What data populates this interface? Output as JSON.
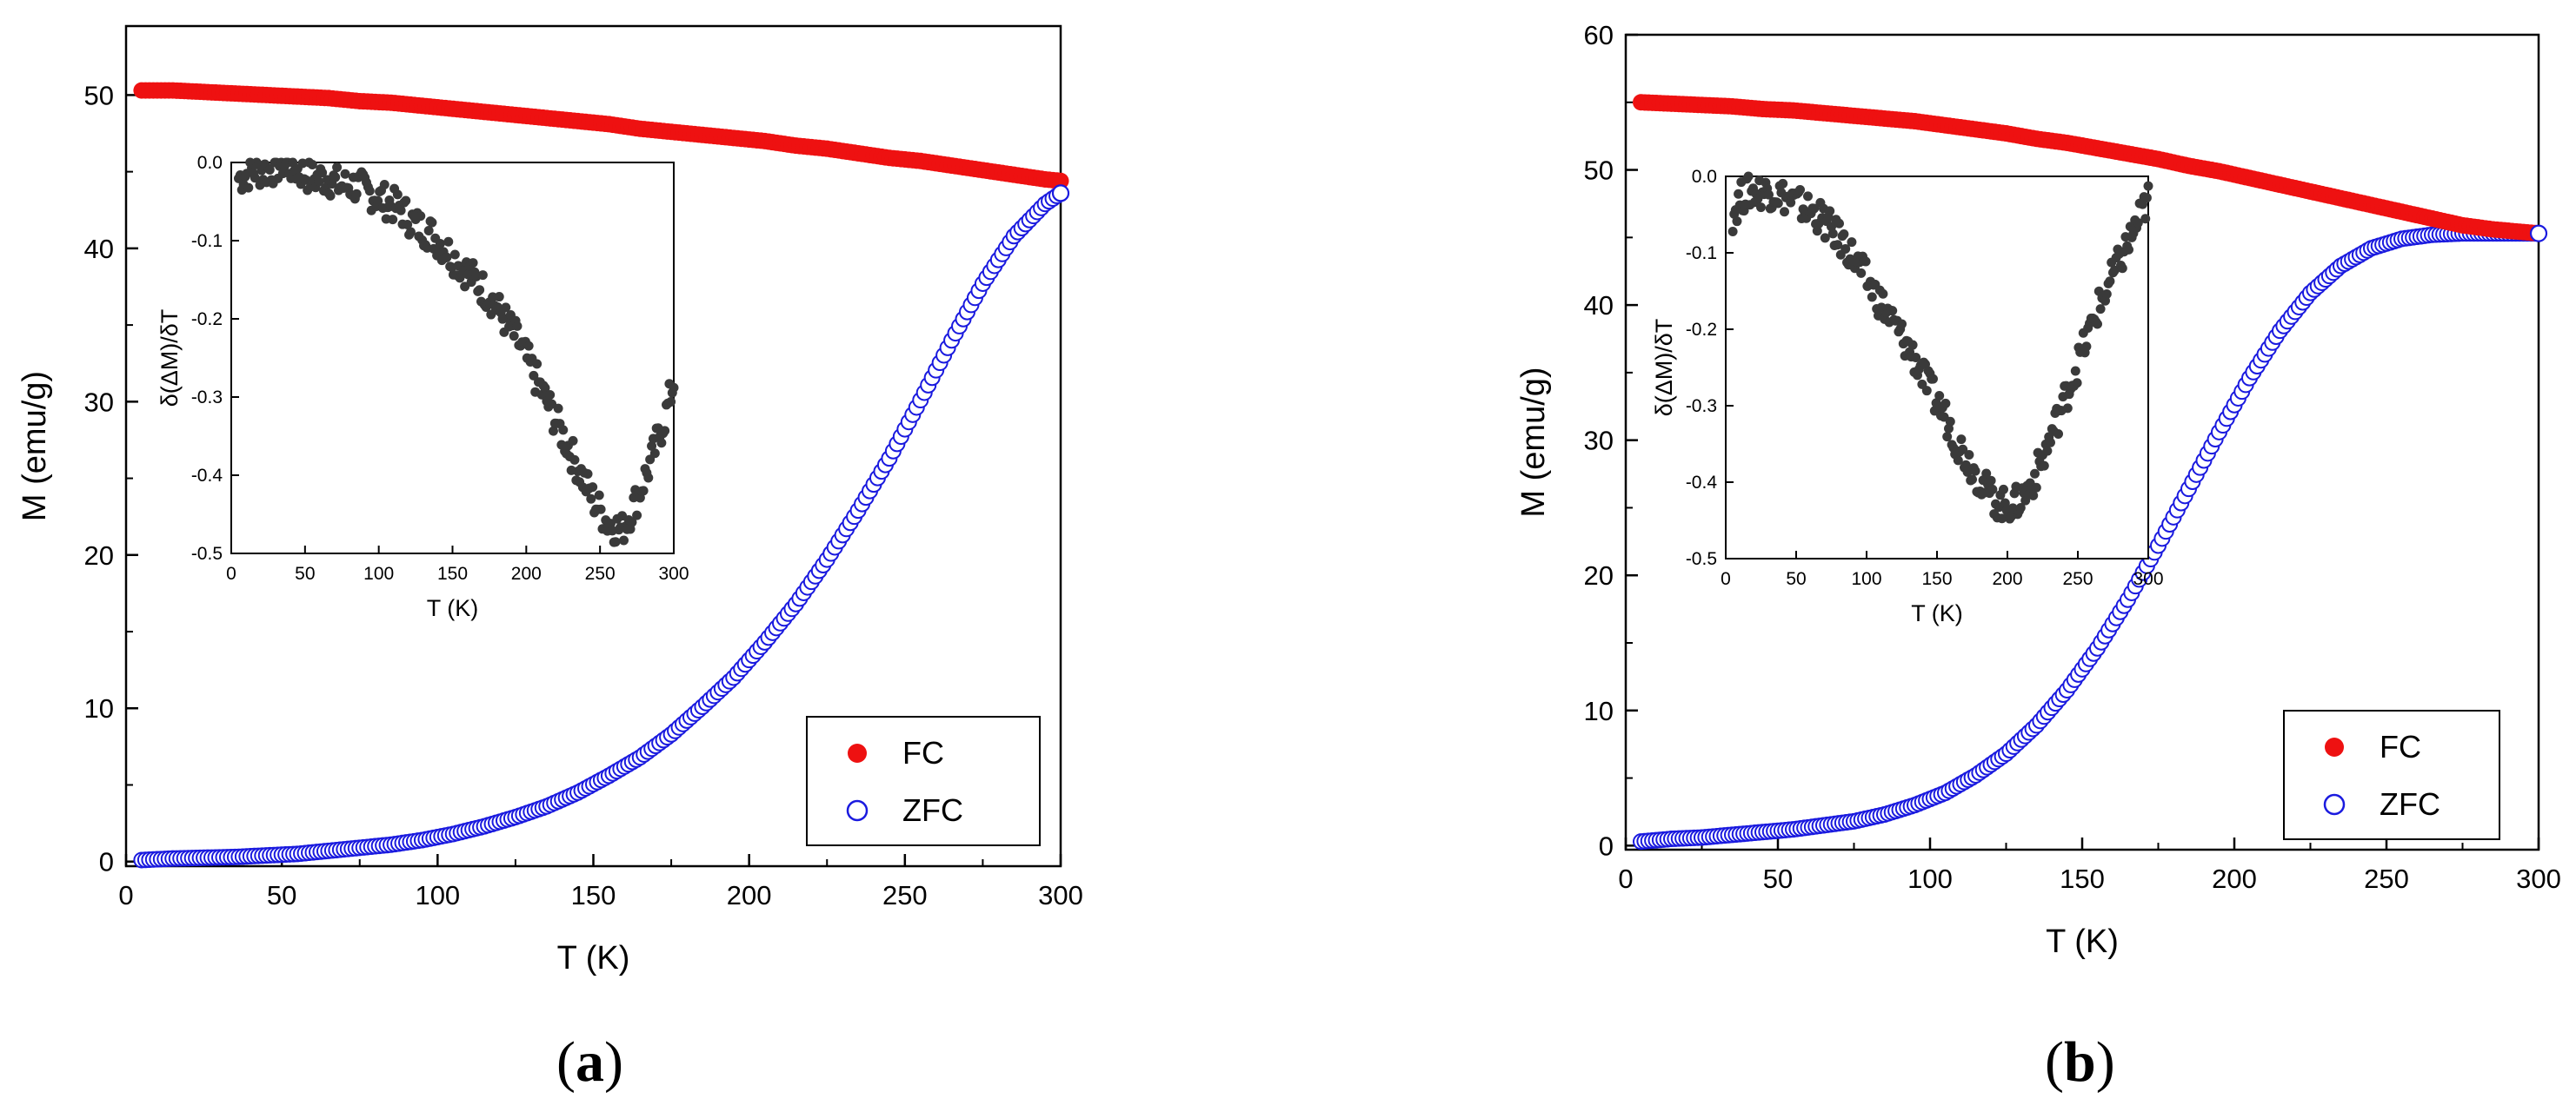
{
  "figure": {
    "panel_a_caption": {
      "open": "(",
      "letter": "a",
      "close": ")"
    },
    "panel_b_caption": {
      "open": "(",
      "letter": "b",
      "close": ")"
    }
  },
  "colors": {
    "fc": "#ee1111",
    "zfc": "#1a1adf",
    "inset": "#3a3a3a",
    "axis": "#000000"
  },
  "chart_data": [
    {
      "id": "a",
      "type": "scatter",
      "title": "",
      "xlabel": "T (K)",
      "ylabel": "M (emu/g)",
      "xlim": [
        0,
        300
      ],
      "ylim": [
        -0.3,
        54.5
      ],
      "xticks": [
        0,
        50,
        100,
        150,
        200,
        250,
        300
      ],
      "yticks": [
        0,
        10,
        20,
        30,
        40,
        50
      ],
      "legend": {
        "position": "bottom-right",
        "entries": [
          "FC",
          "ZFC"
        ]
      },
      "series": [
        {
          "name": "FC",
          "marker": "filled-circle",
          "points": [
            [
              5,
              50.3
            ],
            [
              15,
              50.3
            ],
            [
              25,
              50.2
            ],
            [
              35,
              50.1
            ],
            [
              45,
              50.0
            ],
            [
              55,
              49.9
            ],
            [
              65,
              49.8
            ],
            [
              75,
              49.6
            ],
            [
              85,
              49.5
            ],
            [
              95,
              49.3
            ],
            [
              105,
              49.1
            ],
            [
              115,
              48.9
            ],
            [
              125,
              48.7
            ],
            [
              135,
              48.5
            ],
            [
              145,
              48.3
            ],
            [
              155,
              48.1
            ],
            [
              165,
              47.8
            ],
            [
              175,
              47.6
            ],
            [
              185,
              47.4
            ],
            [
              195,
              47.2
            ],
            [
              205,
              47.0
            ],
            [
              215,
              46.7
            ],
            [
              225,
              46.5
            ],
            [
              235,
              46.2
            ],
            [
              245,
              45.9
            ],
            [
              255,
              45.7
            ],
            [
              265,
              45.4
            ],
            [
              275,
              45.1
            ],
            [
              285,
              44.8
            ],
            [
              295,
              44.5
            ],
            [
              300,
              44.4
            ]
          ]
        },
        {
          "name": "ZFC",
          "marker": "open-circle",
          "points": [
            [
              5,
              0.1
            ],
            [
              15,
              0.2
            ],
            [
              25,
              0.25
            ],
            [
              35,
              0.3
            ],
            [
              45,
              0.4
            ],
            [
              55,
              0.5
            ],
            [
              65,
              0.7
            ],
            [
              75,
              0.9
            ],
            [
              85,
              1.1
            ],
            [
              95,
              1.4
            ],
            [
              105,
              1.8
            ],
            [
              115,
              2.3
            ],
            [
              125,
              2.9
            ],
            [
              135,
              3.6
            ],
            [
              145,
              4.5
            ],
            [
              155,
              5.6
            ],
            [
              165,
              6.8
            ],
            [
              175,
              8.3
            ],
            [
              185,
              10.1
            ],
            [
              195,
              12.0
            ],
            [
              205,
              14.3
            ],
            [
              215,
              16.8
            ],
            [
              225,
              19.7
            ],
            [
              235,
              22.9
            ],
            [
              245,
              26.3
            ],
            [
              255,
              30.1
            ],
            [
              265,
              34.0
            ],
            [
              275,
              37.7
            ],
            [
              285,
              40.8
            ],
            [
              295,
              42.9
            ],
            [
              300,
              43.6
            ]
          ]
        }
      ],
      "inset": {
        "type": "scatter",
        "xlabel": "T (K)",
        "ylabel": "δ(ΔM)/δT",
        "xlim": [
          0,
          300
        ],
        "ylim": [
          -0.5,
          0.0
        ],
        "xticks": [
          0,
          50,
          100,
          150,
          200,
          250,
          300
        ],
        "yticks": [
          0.0,
          -0.1,
          -0.2,
          -0.3,
          -0.4,
          -0.5
        ],
        "ytick_labels": [
          "0.0",
          "-0.1",
          "-0.2",
          "-0.3",
          "-0.4",
          "-0.5"
        ],
        "points": [
          [
            5,
            -0.02
          ],
          [
            15,
            -0.01
          ],
          [
            25,
            -0.01
          ],
          [
            35,
            0.0
          ],
          [
            45,
            -0.01
          ],
          [
            55,
            -0.02
          ],
          [
            65,
            -0.02
          ],
          [
            75,
            -0.03
          ],
          [
            85,
            -0.03
          ],
          [
            95,
            -0.04
          ],
          [
            105,
            -0.05
          ],
          [
            115,
            -0.06
          ],
          [
            125,
            -0.08
          ],
          [
            135,
            -0.09
          ],
          [
            145,
            -0.11
          ],
          [
            155,
            -0.13
          ],
          [
            165,
            -0.15
          ],
          [
            175,
            -0.17
          ],
          [
            185,
            -0.2
          ],
          [
            195,
            -0.23
          ],
          [
            205,
            -0.27
          ],
          [
            215,
            -0.31
          ],
          [
            225,
            -0.35
          ],
          [
            235,
            -0.39
          ],
          [
            245,
            -0.43
          ],
          [
            255,
            -0.46
          ],
          [
            265,
            -0.47
          ],
          [
            275,
            -0.43
          ],
          [
            285,
            -0.38
          ],
          [
            295,
            -0.32
          ],
          [
            300,
            -0.28
          ]
        ]
      }
    },
    {
      "id": "b",
      "type": "scatter",
      "title": "",
      "xlabel": "T (K)",
      "ylabel": "M (emu/g)",
      "xlim": [
        0,
        300
      ],
      "ylim": [
        -0.3,
        60
      ],
      "xticks": [
        0,
        50,
        100,
        150,
        200,
        250,
        300
      ],
      "yticks": [
        0,
        10,
        20,
        30,
        40,
        50,
        60
      ],
      "legend": {
        "position": "bottom-right",
        "entries": [
          "FC",
          "ZFC"
        ]
      },
      "series": [
        {
          "name": "FC",
          "marker": "filled-circle",
          "points": [
            [
              5,
              55.0
            ],
            [
              15,
              54.9
            ],
            [
              25,
              54.8
            ],
            [
              35,
              54.7
            ],
            [
              45,
              54.5
            ],
            [
              55,
              54.4
            ],
            [
              65,
              54.2
            ],
            [
              75,
              54.0
            ],
            [
              85,
              53.8
            ],
            [
              95,
              53.6
            ],
            [
              105,
              53.3
            ],
            [
              115,
              53.0
            ],
            [
              125,
              52.7
            ],
            [
              135,
              52.3
            ],
            [
              145,
              52.0
            ],
            [
              155,
              51.6
            ],
            [
              165,
              51.2
            ],
            [
              175,
              50.8
            ],
            [
              185,
              50.3
            ],
            [
              195,
              49.9
            ],
            [
              205,
              49.4
            ],
            [
              215,
              48.9
            ],
            [
              225,
              48.4
            ],
            [
              235,
              47.9
            ],
            [
              245,
              47.4
            ],
            [
              255,
              46.9
            ],
            [
              265,
              46.4
            ],
            [
              275,
              45.9
            ],
            [
              285,
              45.6
            ],
            [
              295,
              45.4
            ],
            [
              300,
              45.3
            ]
          ]
        },
        {
          "name": "ZFC",
          "marker": "open-circle",
          "points": [
            [
              5,
              0.3
            ],
            [
              15,
              0.5
            ],
            [
              25,
              0.6
            ],
            [
              35,
              0.8
            ],
            [
              45,
              1.0
            ],
            [
              55,
              1.2
            ],
            [
              65,
              1.5
            ],
            [
              75,
              1.8
            ],
            [
              85,
              2.3
            ],
            [
              95,
              3.0
            ],
            [
              105,
              3.9
            ],
            [
              115,
              5.2
            ],
            [
              125,
              6.8
            ],
            [
              135,
              8.9
            ],
            [
              145,
              11.5
            ],
            [
              155,
              14.6
            ],
            [
              165,
              18.2
            ],
            [
              175,
              22.2
            ],
            [
              185,
              26.4
            ],
            [
              195,
              30.6
            ],
            [
              205,
              34.6
            ],
            [
              215,
              38.1
            ],
            [
              225,
              40.9
            ],
            [
              235,
              42.9
            ],
            [
              245,
              44.2
            ],
            [
              255,
              44.9
            ],
            [
              265,
              45.2
            ],
            [
              275,
              45.3
            ],
            [
              285,
              45.3
            ],
            [
              295,
              45.3
            ],
            [
              300,
              45.3
            ]
          ]
        }
      ],
      "inset": {
        "type": "scatter",
        "xlabel": "T (K)",
        "ylabel": "δ(ΔM)/δT",
        "xlim": [
          0,
          300
        ],
        "ylim": [
          -0.5,
          0.0
        ],
        "xticks": [
          0,
          50,
          100,
          150,
          200,
          250,
          300
        ],
        "yticks": [
          0.0,
          -0.1,
          -0.2,
          -0.3,
          -0.4,
          -0.5
        ],
        "ytick_labels": [
          "0.0",
          "-0.1",
          "-0.2",
          "-0.3",
          "-0.4",
          "-0.5"
        ],
        "points": [
          [
            5,
            -0.05
          ],
          [
            10,
            -0.03
          ],
          [
            15,
            -0.02
          ],
          [
            25,
            -0.02
          ],
          [
            35,
            -0.02
          ],
          [
            45,
            -0.03
          ],
          [
            55,
            -0.04
          ],
          [
            65,
            -0.05
          ],
          [
            75,
            -0.07
          ],
          [
            85,
            -0.09
          ],
          [
            95,
            -0.12
          ],
          [
            105,
            -0.15
          ],
          [
            115,
            -0.18
          ],
          [
            125,
            -0.21
          ],
          [
            135,
            -0.24
          ],
          [
            145,
            -0.28
          ],
          [
            155,
            -0.31
          ],
          [
            165,
            -0.35
          ],
          [
            175,
            -0.38
          ],
          [
            185,
            -0.41
          ],
          [
            195,
            -0.43
          ],
          [
            205,
            -0.43
          ],
          [
            215,
            -0.41
          ],
          [
            225,
            -0.37
          ],
          [
            235,
            -0.32
          ],
          [
            245,
            -0.27
          ],
          [
            255,
            -0.22
          ],
          [
            265,
            -0.17
          ],
          [
            275,
            -0.13
          ],
          [
            285,
            -0.09
          ],
          [
            295,
            -0.05
          ],
          [
            300,
            -0.03
          ]
        ]
      }
    }
  ]
}
